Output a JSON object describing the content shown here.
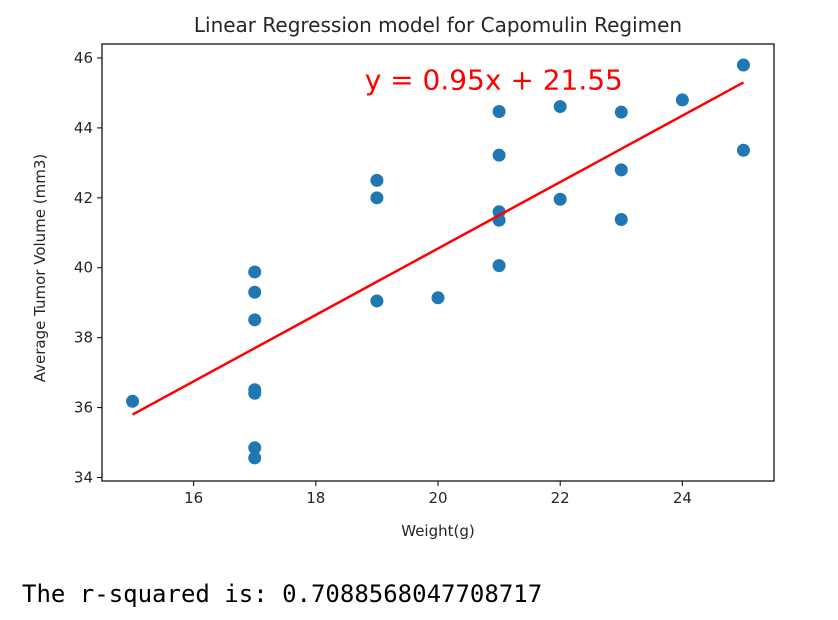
{
  "chart_data": {
    "type": "scatter",
    "title": "Linear Regression model for Capomulin Regimen",
    "xlabel": "Weight(g)",
    "ylabel": "Average Tumor Volume (mm3)",
    "xlim": [
      14.5,
      25.5
    ],
    "ylim": [
      33.9,
      46.4
    ],
    "xticks": [
      16,
      18,
      20,
      22,
      24
    ],
    "yticks": [
      34,
      36,
      38,
      40,
      42,
      44,
      46
    ],
    "grid": false,
    "points": [
      {
        "x": 15,
        "y": 36.18
      },
      {
        "x": 17,
        "y": 39.88
      },
      {
        "x": 17,
        "y": 39.3
      },
      {
        "x": 17,
        "y": 38.51
      },
      {
        "x": 17,
        "y": 36.51
      },
      {
        "x": 17,
        "y": 36.41
      },
      {
        "x": 17,
        "y": 34.85
      },
      {
        "x": 17,
        "y": 34.56
      },
      {
        "x": 19,
        "y": 42.5
      },
      {
        "x": 19,
        "y": 42.0
      },
      {
        "x": 19,
        "y": 39.05
      },
      {
        "x": 20,
        "y": 39.14
      },
      {
        "x": 21,
        "y": 44.47
      },
      {
        "x": 21,
        "y": 43.22
      },
      {
        "x": 21,
        "y": 41.6
      },
      {
        "x": 21,
        "y": 41.36
      },
      {
        "x": 21,
        "y": 40.06
      },
      {
        "x": 22,
        "y": 44.61
      },
      {
        "x": 22,
        "y": 41.96
      },
      {
        "x": 23,
        "y": 44.45
      },
      {
        "x": 23,
        "y": 42.8
      },
      {
        "x": 23,
        "y": 41.38
      },
      {
        "x": 24,
        "y": 44.8
      },
      {
        "x": 25,
        "y": 45.8
      },
      {
        "x": 25,
        "y": 43.36
      }
    ],
    "regression": {
      "slope": 0.95,
      "intercept": 21.55,
      "x_range": [
        15,
        25
      ],
      "equation": "y = 0.95x + 21.55",
      "equation_at": {
        "x": 18.8,
        "y": 45.1
      }
    },
    "colors": {
      "points": "#1f77b4",
      "line": "#ff0000",
      "equation": "#ff0000"
    }
  },
  "output": {
    "rsquared_text": "The r-squared is: 0.7088568047708717"
  }
}
